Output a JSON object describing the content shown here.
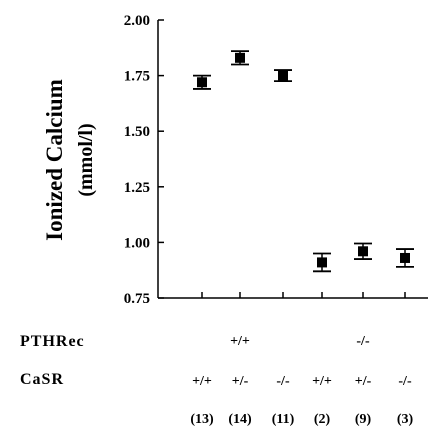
{
  "chart_data": {
    "type": "scatter",
    "ylabel": "Ionized Calcium",
    "ylabel_unit": "(mmol/l)",
    "ylim": [
      0.75,
      2.0
    ],
    "yticks": [
      "2.00",
      "1.75",
      "1.50",
      "1.25",
      "1.00",
      "0.75"
    ],
    "grid": false,
    "categories": [
      "+/+ +/+",
      "+/+ +/-",
      "+/+ -/-",
      "-/- +/+",
      "-/- +/-",
      "-/- -/-"
    ],
    "values": [
      1.72,
      1.83,
      1.75,
      0.91,
      0.96,
      0.93
    ],
    "error": [
      0.03,
      0.03,
      0.025,
      0.04,
      0.035,
      0.04
    ],
    "table": {
      "rows": [
        {
          "label": "PTHRec",
          "group_labels": [
            "+/+",
            "-/-"
          ]
        },
        {
          "label": "CaSR",
          "values": [
            "+/+",
            "+/-",
            "-/-",
            "+/+",
            "+/-",
            "-/-"
          ]
        }
      ],
      "n": [
        "(13)",
        "(14)",
        "(11)",
        "(2)",
        "(9)",
        "(3)"
      ]
    }
  }
}
